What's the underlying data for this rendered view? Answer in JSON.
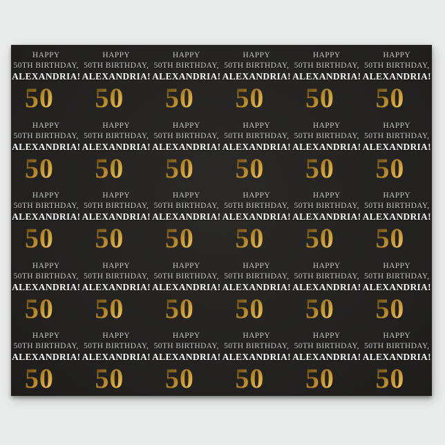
{
  "product_image": {
    "description_note": "repeating birthday pattern sheet on light backdrop"
  },
  "tile": {
    "line1": "HAPPY",
    "line2": "50TH BIRTHDAY,",
    "line3": "ALEXANDRIA!",
    "number": "50",
    "suffix": "th"
  },
  "grid": {
    "columns": 6,
    "rows": 5
  },
  "colors": {
    "page_background": "#e9eaea",
    "sheet_background": "#242322",
    "sheet_center": "#2a2927",
    "sheet_edge": "#1e1d1c",
    "small_text": "#c9c9c9",
    "name_text": "#f8f8f8",
    "gold_1": "#63491a",
    "gold_2": "#8a671f",
    "gold_3": "#c1922e",
    "gold_4": "#eec35a",
    "gold_5": "#f7dd8a"
  }
}
